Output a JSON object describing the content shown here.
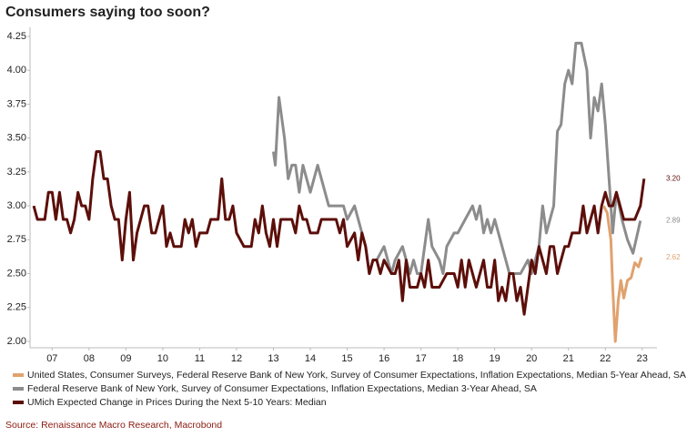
{
  "chart_data": {
    "type": "line",
    "title": "Consumers saying too soon?",
    "source": "Source: Renaissance Macro Research, Macrobond",
    "xlim": [
      2006.4,
      2023.4
    ],
    "ylim": [
      1.953,
      4.317
    ],
    "xticks": [
      {
        "value": 2007,
        "label": "07"
      },
      {
        "value": 2008,
        "label": "08"
      },
      {
        "value": 2009,
        "label": "09"
      },
      {
        "value": 2010,
        "label": "10"
      },
      {
        "value": 2011,
        "label": "11"
      },
      {
        "value": 2012,
        "label": "12"
      },
      {
        "value": 2013,
        "label": "13"
      },
      {
        "value": 2014,
        "label": "14"
      },
      {
        "value": 2015,
        "label": "15"
      },
      {
        "value": 2016,
        "label": "16"
      },
      {
        "value": 2017,
        "label": "17"
      },
      {
        "value": 2018,
        "label": "18"
      },
      {
        "value": 2019,
        "label": "19"
      },
      {
        "value": 2020,
        "label": "20"
      },
      {
        "value": 2021,
        "label": "21"
      },
      {
        "value": 2022,
        "label": "22"
      },
      {
        "value": 2023,
        "label": "23"
      }
    ],
    "yticks": [
      {
        "value": 2,
        "label": "2.00"
      },
      {
        "value": 2.25,
        "label": "2.25"
      },
      {
        "value": 2.5,
        "label": "2.50"
      },
      {
        "value": 2.75,
        "label": "2.75"
      },
      {
        "value": 3,
        "label": "3.00"
      },
      {
        "value": 3.25,
        "label": "3.25"
      },
      {
        "value": 3.5,
        "label": "3.50"
      },
      {
        "value": 3.75,
        "label": "3.75"
      },
      {
        "value": 4,
        "label": "4.00"
      },
      {
        "value": 4.25,
        "label": "4.25"
      }
    ],
    "grid": false,
    "series": [
      {
        "name": "United States, Consumer Surveys, Federal Reserve Bank of New York, Survey of Consumer Expectations, Inflation Expectations, Median 5-Year Ahead, SA",
        "color": "#e0a26e",
        "end_label": "2.62",
        "x": [
          2021.95,
          2022.05,
          2022.1,
          2022.15,
          2022.2,
          2022.27,
          2022.35,
          2022.42,
          2022.5,
          2022.6,
          2022.7,
          2022.8,
          2022.9,
          2022.98
        ],
        "values": [
          3.0,
          2.95,
          2.85,
          2.75,
          2.4,
          2.0,
          2.3,
          2.45,
          2.32,
          2.45,
          2.47,
          2.58,
          2.55,
          2.62
        ]
      },
      {
        "name": "Federal Reserve Bank of New York, Survey of Consumer Expectations, Inflation Expectations, Median 3-Year Ahead, SA",
        "color": "#8c8c8c",
        "end_label": "2.89",
        "x": [
          2013.0,
          2013.05,
          2013.15,
          2013.3,
          2013.4,
          2013.5,
          2013.6,
          2013.7,
          2013.8,
          2013.9,
          2014.0,
          2014.2,
          2014.3,
          2014.5,
          2014.7,
          2014.9,
          2015.0,
          2015.2,
          2015.4,
          2015.5,
          2015.6,
          2015.7,
          2015.8,
          2016.0,
          2016.2,
          2016.3,
          2016.5,
          2016.7,
          2016.8,
          2016.9,
          2017.0,
          2017.2,
          2017.3,
          2017.5,
          2017.6,
          2017.7,
          2017.9,
          2018.0,
          2018.2,
          2018.4,
          2018.5,
          2018.6,
          2018.7,
          2018.8,
          2018.9,
          2019.0,
          2019.2,
          2019.3,
          2019.4,
          2019.5,
          2019.7,
          2019.9,
          2020.0,
          2020.1,
          2020.2,
          2020.3,
          2020.4,
          2020.5,
          2020.6,
          2020.7,
          2020.8,
          2020.9,
          2021.0,
          2021.1,
          2021.2,
          2021.35,
          2021.5,
          2021.6,
          2021.7,
          2021.8,
          2021.9,
          2022.0,
          2022.1,
          2022.2,
          2022.3,
          2022.45,
          2022.6,
          2022.75,
          2022.95
        ],
        "values": [
          3.4,
          3.3,
          3.8,
          3.5,
          3.2,
          3.3,
          3.3,
          3.1,
          3.3,
          3.2,
          3.1,
          3.3,
          3.2,
          3.0,
          3.0,
          3.0,
          2.9,
          3.0,
          2.8,
          2.7,
          2.5,
          2.6,
          2.6,
          2.7,
          2.5,
          2.6,
          2.7,
          2.5,
          2.6,
          2.5,
          2.5,
          2.9,
          2.7,
          2.6,
          2.5,
          2.7,
          2.8,
          2.8,
          2.9,
          3.0,
          2.9,
          3.0,
          2.8,
          2.9,
          2.8,
          2.9,
          2.7,
          2.6,
          2.5,
          2.5,
          2.5,
          2.6,
          2.5,
          2.6,
          2.7,
          3.0,
          2.8,
          2.9,
          3.0,
          3.55,
          3.6,
          3.9,
          4.0,
          3.9,
          4.2,
          4.2,
          4.0,
          3.5,
          3.8,
          3.7,
          3.9,
          3.6,
          3.2,
          2.8,
          3.1,
          2.9,
          2.75,
          2.65,
          2.89
        ]
      },
      {
        "name": "UMich Expected Change in Prices During the Next 5-10 Years: Median",
        "color": "#5c0f0a",
        "end_label": "3.20",
        "x": [
          2006.5,
          2006.6,
          2006.8,
          2006.9,
          2007.0,
          2007.1,
          2007.2,
          2007.3,
          2007.4,
          2007.5,
          2007.6,
          2007.7,
          2007.8,
          2007.9,
          2008.0,
          2008.1,
          2008.2,
          2008.3,
          2008.4,
          2008.5,
          2008.6,
          2008.7,
          2008.8,
          2008.9,
          2009.0,
          2009.1,
          2009.2,
          2009.3,
          2009.4,
          2009.5,
          2009.6,
          2009.7,
          2009.8,
          2009.9,
          2010.0,
          2010.1,
          2010.2,
          2010.3,
          2010.5,
          2010.6,
          2010.7,
          2010.8,
          2010.9,
          2011.0,
          2011.2,
          2011.3,
          2011.4,
          2011.5,
          2011.6,
          2011.7,
          2011.8,
          2011.9,
          2012.0,
          2012.2,
          2012.4,
          2012.5,
          2012.6,
          2012.7,
          2012.8,
          2012.9,
          2013.0,
          2013.1,
          2013.2,
          2013.4,
          2013.5,
          2013.6,
          2013.7,
          2013.8,
          2013.9,
          2014.0,
          2014.2,
          2014.3,
          2014.5,
          2014.7,
          2014.8,
          2014.9,
          2015.0,
          2015.2,
          2015.3,
          2015.4,
          2015.5,
          2015.6,
          2015.7,
          2015.8,
          2015.9,
          2016.0,
          2016.2,
          2016.3,
          2016.4,
          2016.5,
          2016.6,
          2016.7,
          2016.9,
          2017.0,
          2017.1,
          2017.2,
          2017.3,
          2017.5,
          2017.7,
          2017.9,
          2018.0,
          2018.1,
          2018.2,
          2018.3,
          2018.4,
          2018.5,
          2018.7,
          2018.8,
          2018.9,
          2019.0,
          2019.1,
          2019.2,
          2019.3,
          2019.4,
          2019.5,
          2019.6,
          2019.7,
          2019.8,
          2019.9,
          2020.0,
          2020.1,
          2020.2,
          2020.3,
          2020.4,
          2020.5,
          2020.6,
          2020.7,
          2020.8,
          2020.9,
          2021.0,
          2021.1,
          2021.2,
          2021.3,
          2021.4,
          2021.5,
          2021.6,
          2021.7,
          2021.8,
          2021.9,
          2022.0,
          2022.1,
          2022.2,
          2022.3,
          2022.4,
          2022.5,
          2022.6,
          2022.7,
          2022.8,
          2022.95,
          2023.05
        ],
        "values": [
          3.0,
          2.9,
          2.9,
          3.1,
          3.1,
          2.9,
          3.1,
          2.9,
          2.9,
          2.8,
          2.9,
          3.1,
          3.0,
          3.0,
          2.9,
          3.2,
          3.4,
          3.4,
          3.2,
          3.2,
          3.0,
          2.9,
          2.9,
          2.6,
          2.9,
          3.1,
          2.6,
          2.8,
          2.9,
          3.0,
          3.0,
          2.8,
          2.8,
          2.9,
          3.0,
          2.7,
          2.8,
          2.7,
          2.7,
          2.9,
          2.8,
          2.9,
          2.7,
          2.8,
          2.8,
          2.9,
          2.9,
          2.9,
          3.2,
          2.9,
          2.9,
          3.0,
          2.8,
          2.7,
          2.7,
          2.9,
          2.8,
          3.0,
          2.8,
          2.7,
          2.9,
          2.7,
          2.9,
          2.9,
          2.9,
          2.8,
          3.0,
          2.9,
          2.9,
          2.8,
          2.8,
          2.9,
          2.9,
          2.9,
          2.8,
          2.9,
          2.7,
          2.8,
          2.6,
          2.8,
          2.7,
          2.5,
          2.6,
          2.6,
          2.5,
          2.6,
          2.5,
          2.5,
          2.6,
          2.3,
          2.6,
          2.4,
          2.4,
          2.5,
          2.4,
          2.6,
          2.4,
          2.4,
          2.5,
          2.5,
          2.4,
          2.6,
          2.4,
          2.6,
          2.5,
          2.4,
          2.6,
          2.4,
          2.4,
          2.6,
          2.3,
          2.4,
          2.3,
          2.5,
          2.5,
          2.3,
          2.4,
          2.2,
          2.4,
          2.6,
          2.5,
          2.7,
          2.6,
          2.5,
          2.7,
          2.7,
          2.5,
          2.6,
          2.7,
          2.7,
          2.8,
          2.8,
          2.8,
          3.0,
          2.8,
          2.9,
          3.0,
          2.8,
          3.0,
          3.1,
          3.0,
          3.0,
          3.1,
          3.0,
          2.9,
          2.9,
          2.9,
          2.9,
          3.0,
          3.2
        ]
      }
    ]
  }
}
